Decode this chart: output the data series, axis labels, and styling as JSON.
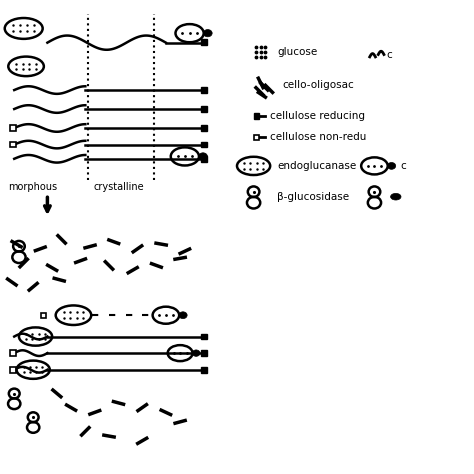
{
  "bg_color": "#ffffff",
  "line_color": "#000000",
  "fig_width": 4.74,
  "fig_height": 4.74,
  "dpi": 100,
  "legend": {
    "glucose_label": "glucose",
    "cellobiose_label": "c",
    "cello_oligo_label": "cello-oligosac",
    "cel_red_label": "cellulose reducing",
    "cel_nonred_label": "cellulose non-redu",
    "endoglucanase_label": "endoglucanase",
    "beta_gluco_label": "β-glucosidase"
  }
}
